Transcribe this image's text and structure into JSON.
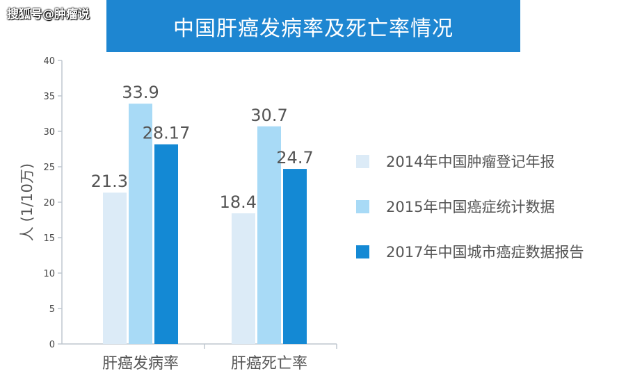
{
  "watermark": "搜狐号@肿瘤说",
  "chart_data": {
    "type": "bar",
    "title": "中国肝癌发病率及死亡率情况",
    "ylabel": "人 (1/10万)",
    "xlabel": "",
    "ylim": [
      0,
      40
    ],
    "yticks": [
      "0",
      "5",
      "10",
      "15",
      "20",
      "25",
      "30",
      "35",
      "40"
    ],
    "categories": [
      "肝癌发病率",
      "肝癌死亡率"
    ],
    "series": [
      {
        "name": "2014年中国肿瘤登记年报",
        "color": "#dcebf7",
        "values": [
          21.35,
          18.43
        ],
        "labels": [
          "21.35",
          "18.43"
        ]
      },
      {
        "name": "2015年中国癌症统计数据",
        "color": "#a8daf6",
        "values": [
          33.9,
          30.7
        ],
        "labels": [
          "33.9",
          "30.7"
        ]
      },
      {
        "name": "2017年中国城市癌症数据报告",
        "color": "#1489d4",
        "values": [
          28.17,
          24.7
        ],
        "labels": [
          "28.17",
          "24.7"
        ]
      }
    ],
    "grid": false,
    "legend_position": "right"
  }
}
